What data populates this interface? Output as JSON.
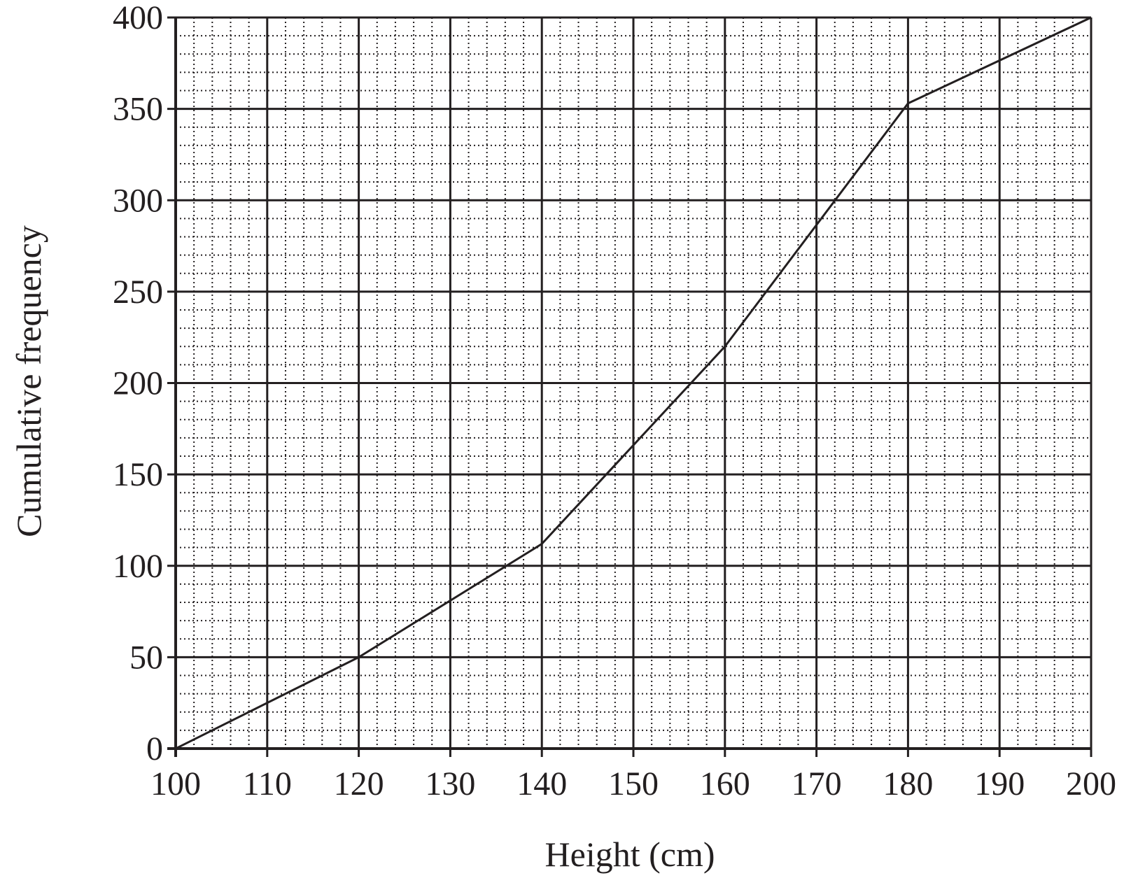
{
  "chart_data": {
    "type": "line",
    "title": "",
    "xlabel": "Height (cm)",
    "ylabel": "Cumulative frequency",
    "xlim": [
      100,
      200
    ],
    "ylim": [
      0,
      400
    ],
    "x_ticks": [
      "100",
      "110",
      "120",
      "130",
      "140",
      "150",
      "160",
      "170",
      "180",
      "190",
      "200"
    ],
    "y_ticks": [
      "0",
      "50",
      "100",
      "150",
      "200",
      "250",
      "300",
      "350",
      "400"
    ],
    "major_grid_x_step": 10,
    "major_grid_y_step": 50,
    "minor_grid_x_step": 2,
    "minor_grid_y_step": 10,
    "grid": true,
    "legend": "none",
    "series": [
      {
        "points": [
          {
            "x": 100,
            "y": 0
          },
          {
            "x": 120,
            "y": 50
          },
          {
            "x": 140,
            "y": 112
          },
          {
            "x": 160,
            "y": 220
          },
          {
            "x": 180,
            "y": 353
          },
          {
            "x": 200,
            "y": 400
          }
        ],
        "color": "#231f20"
      }
    ],
    "colors": {
      "ink": "#231f20",
      "background": "#ffffff"
    }
  }
}
